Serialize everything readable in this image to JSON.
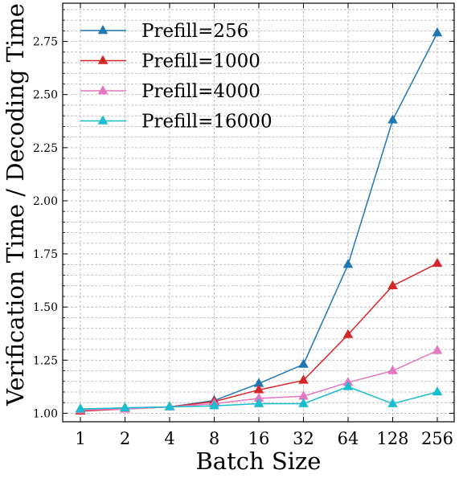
{
  "chart_data": {
    "type": "line",
    "xlabel": "Batch Size",
    "ylabel": "Verification Time / Decoding Time",
    "x_tick_labels": [
      "1",
      "2",
      "4",
      "8",
      "16",
      "32",
      "64",
      "128",
      "256"
    ],
    "x_scale": "log2",
    "x": [
      1,
      2,
      4,
      8,
      16,
      32,
      64,
      128,
      256
    ],
    "ylim": [
      0.96,
      2.93
    ],
    "y_ticks": [
      1.0,
      1.25,
      1.5,
      1.75,
      2.0,
      2.25,
      2.5,
      2.75
    ],
    "y_tick_labels": [
      "1.00",
      "1.25",
      "1.50",
      "1.75",
      "2.00",
      "2.25",
      "2.50",
      "2.75"
    ],
    "grid": true,
    "legend_position": "top-left",
    "marker": "triangle",
    "series": [
      {
        "name": "Prefill=256",
        "color": "#1f77b4",
        "values": [
          1.02,
          1.025,
          1.03,
          1.06,
          1.14,
          1.23,
          1.7,
          2.38,
          2.79
        ]
      },
      {
        "name": "Prefill=1000",
        "color": "#d62728",
        "values": [
          1.01,
          1.02,
          1.03,
          1.055,
          1.11,
          1.155,
          1.37,
          1.6,
          1.705
        ]
      },
      {
        "name": "Prefill=4000",
        "color": "#e377c2",
        "values": [
          1.015,
          1.02,
          1.03,
          1.045,
          1.07,
          1.08,
          1.145,
          1.2,
          1.295
        ]
      },
      {
        "name": "Prefill=16000",
        "color": "#17becf",
        "values": [
          1.02,
          1.025,
          1.03,
          1.035,
          1.045,
          1.045,
          1.125,
          1.045,
          1.1
        ]
      }
    ]
  }
}
